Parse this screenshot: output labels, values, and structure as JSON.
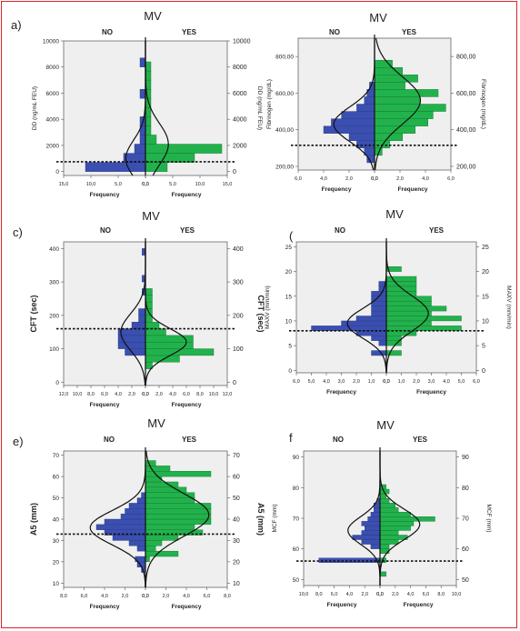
{
  "panels": [
    {
      "letter": "a)",
      "mv": "MV",
      "no": "NO",
      "yes": "YES"
    },
    {
      "letter": "",
      "mv": "MV",
      "no": "NO",
      "yes": "YES"
    },
    {
      "letter": "c)",
      "mv": "MV",
      "no": "NO",
      "yes": "YES"
    },
    {
      "letter": "(",
      "mv": "MV",
      "no": "NO",
      "yes": "YES"
    },
    {
      "letter": "e)",
      "mv": "MV",
      "no": "NO",
      "yes": "YES"
    },
    {
      "letter": "f",
      "mv": "MV",
      "no": "NO",
      "yes": "YES"
    }
  ],
  "colors": {
    "no": "#3a4fb0",
    "yes": "#22b24c",
    "plot_bg": "#efefef",
    "curve": "#111111"
  },
  "chart_data": [
    {
      "type": "bar",
      "orientation": "back-to-back horizontal histogram",
      "ylabel_left": "DD (ng/mL FEU)",
      "ylabel_right": "DD (ng/mL FEU)",
      "xlabel": "Frequency",
      "ylim": [
        -300,
        10000
      ],
      "yticks": [
        "0",
        "2000",
        "4000",
        "6000",
        "8000",
        "10000"
      ],
      "yticks_values": [
        0,
        2000,
        4000,
        6000,
        8000,
        10000
      ],
      "xticks_left": [
        "15,0",
        "10,0",
        "5,0",
        "0,0"
      ],
      "xticks_right": [
        "0,0",
        "5,0",
        "10,0",
        "15,0"
      ],
      "xmax": 15,
      "bin": 700,
      "no_bins": [
        {
          "y": 0,
          "v": 11
        },
        {
          "y": 700,
          "v": 4
        },
        {
          "y": 1400,
          "v": 2
        },
        {
          "y": 2100,
          "v": 1
        },
        {
          "y": 2800,
          "v": 1
        },
        {
          "y": 3500,
          "v": 1
        },
        {
          "y": 5600,
          "v": 1
        },
        {
          "y": 8000,
          "v": 1
        }
      ],
      "yes_bins": [
        {
          "y": 0,
          "v": 4
        },
        {
          "y": 700,
          "v": 9
        },
        {
          "y": 1400,
          "v": 14
        },
        {
          "y": 2100,
          "v": 2
        },
        {
          "y": 2800,
          "v": 1
        },
        {
          "y": 3500,
          "v": 1
        },
        {
          "y": 4200,
          "v": 1
        },
        {
          "y": 4900,
          "v": 1
        },
        {
          "y": 5600,
          "v": 1
        },
        {
          "y": 6300,
          "v": 1
        },
        {
          "y": 7000,
          "v": 1
        },
        {
          "y": 7700,
          "v": 1
        }
      ],
      "no_curve": {
        "mean": 1000,
        "sd": 1400,
        "peak": 3.6
      },
      "yes_curve": {
        "mean": 2100,
        "sd": 1600,
        "peak": 4.2
      },
      "cutoff": 750
    },
    {
      "type": "bar",
      "orientation": "back-to-back horizontal histogram",
      "ylabel_left": "Fibrinogen (mg/dL)",
      "ylabel_right": "Fibrinogen (mg/dL)",
      "xlabel": "Frequency",
      "ylim": [
        180,
        900
      ],
      "yticks_left": [
        "200,00",
        "400,00",
        "600,00",
        "800,00"
      ],
      "yticks_right": [
        "200,00",
        "400,00",
        "600,00",
        "800,00"
      ],
      "yticks_values": [
        200,
        400,
        600,
        800
      ],
      "xticks_left": [
        "6,0",
        "4,0",
        "2,0",
        "0,0"
      ],
      "xticks_right": [
        "0,0",
        "2,0",
        "4,0",
        "6,0"
      ],
      "xmax": 6,
      "bin": 40,
      "no_bins": [
        {
          "y": 220,
          "v": 0.6
        },
        {
          "y": 260,
          "v": 0.8
        },
        {
          "y": 300,
          "v": 1.4
        },
        {
          "y": 340,
          "v": 2.0
        },
        {
          "y": 380,
          "v": 4.0
        },
        {
          "y": 420,
          "v": 3.4
        },
        {
          "y": 460,
          "v": 2.6
        },
        {
          "y": 500,
          "v": 1.4
        },
        {
          "y": 540,
          "v": 0.8
        },
        {
          "y": 580,
          "v": 0.6
        },
        {
          "y": 620,
          "v": 0.4
        }
      ],
      "yes_bins": [
        {
          "y": 260,
          "v": 0.6
        },
        {
          "y": 300,
          "v": 1.2
        },
        {
          "y": 340,
          "v": 2.2
        },
        {
          "y": 380,
          "v": 3.2
        },
        {
          "y": 420,
          "v": 4.2
        },
        {
          "y": 460,
          "v": 4.6
        },
        {
          "y": 500,
          "v": 5.6
        },
        {
          "y": 540,
          "v": 3.6
        },
        {
          "y": 580,
          "v": 5.0
        },
        {
          "y": 620,
          "v": 2.4
        },
        {
          "y": 660,
          "v": 3.4
        },
        {
          "y": 700,
          "v": 2.2
        },
        {
          "y": 740,
          "v": 1.4
        }
      ],
      "no_curve": {
        "mean": 430,
        "sd": 95,
        "peak": 3.2
      },
      "yes_curve": {
        "mean": 560,
        "sd": 130,
        "peak": 3.6
      },
      "cutoff": 315
    },
    {
      "type": "bar",
      "orientation": "back-to-back horizontal histogram",
      "ylabel_left": "CFT (sec)",
      "ylabel_right": "CFT (sec)",
      "xlabel": "Frequency",
      "ylim": [
        -10,
        420
      ],
      "yticks": [
        "0",
        "100",
        "200",
        "300",
        "400"
      ],
      "yticks_values": [
        0,
        100,
        200,
        300,
        400
      ],
      "xticks_left": [
        "12,0",
        "10,0",
        "8,0",
        "6,0",
        "4,0",
        "2,0",
        "0,0"
      ],
      "xticks_right": [
        "0,0",
        "2,0",
        "4,0",
        "6,0",
        "8,0",
        "10,0",
        "12,0"
      ],
      "xmax": 12,
      "bin": 20,
      "no_bins": [
        {
          "y": 80,
          "v": 3
        },
        {
          "y": 100,
          "v": 4
        },
        {
          "y": 120,
          "v": 4
        },
        {
          "y": 140,
          "v": 4
        },
        {
          "y": 160,
          "v": 2
        },
        {
          "y": 180,
          "v": 1
        },
        {
          "y": 200,
          "v": 1
        },
        {
          "y": 260,
          "v": 0.5
        },
        {
          "y": 300,
          "v": 0.5
        },
        {
          "y": 380,
          "v": 0.5
        }
      ],
      "yes_bins": [
        {
          "y": 40,
          "v": 1
        },
        {
          "y": 60,
          "v": 5
        },
        {
          "y": 80,
          "v": 10
        },
        {
          "y": 100,
          "v": 7
        },
        {
          "y": 120,
          "v": 7
        },
        {
          "y": 140,
          "v": 3
        },
        {
          "y": 160,
          "v": 2
        },
        {
          "y": 180,
          "v": 1
        },
        {
          "y": 200,
          "v": 1
        },
        {
          "y": 220,
          "v": 1
        },
        {
          "y": 240,
          "v": 1
        },
        {
          "y": 260,
          "v": 1
        }
      ],
      "no_curve": {
        "mean": 150,
        "sd": 55,
        "peak": 3.6
      },
      "yes_curve": {
        "mean": 120,
        "sd": 40,
        "peak": 6.0
      },
      "cutoff": 160
    },
    {
      "type": "bar",
      "orientation": "back-to-back horizontal histogram",
      "ylabel_left": "MAXV (mm/min)",
      "ylabel_right": "MAXV (mm/min)",
      "xlabel": "Frequency",
      "ylim": [
        -0.5,
        26
      ],
      "yticks": [
        "0",
        "5",
        "10",
        "15",
        "20",
        "25"
      ],
      "yticks_values": [
        0,
        5,
        10,
        15,
        20,
        25
      ],
      "xticks_left": [
        "6,0",
        "5,0",
        "4,0",
        "3,0",
        "2,0",
        "1,0",
        "0,0"
      ],
      "xticks_right": [
        "0,0",
        "1,0",
        "2,0",
        "3,0",
        "4,0",
        "5,0",
        "6,0"
      ],
      "xmax": 6,
      "bin": 1,
      "no_bins": [
        {
          "y": 3,
          "v": 1.0
        },
        {
          "y": 5,
          "v": 0.5
        },
        {
          "y": 6,
          "v": 1.0
        },
        {
          "y": 7,
          "v": 2.0
        },
        {
          "y": 8,
          "v": 5.0
        },
        {
          "y": 9,
          "v": 3.0
        },
        {
          "y": 10,
          "v": 2.0
        },
        {
          "y": 11,
          "v": 1.0
        },
        {
          "y": 12,
          "v": 1.0
        },
        {
          "y": 13,
          "v": 1.0
        },
        {
          "y": 14,
          "v": 1.0
        },
        {
          "y": 15,
          "v": 1.0
        },
        {
          "y": 16,
          "v": 0.5
        },
        {
          "y": 17,
          "v": 0.5
        }
      ],
      "yes_bins": [
        {
          "y": 3,
          "v": 1.0
        },
        {
          "y": 5,
          "v": 1.0
        },
        {
          "y": 6,
          "v": 1.0
        },
        {
          "y": 7,
          "v": 2.0
        },
        {
          "y": 8,
          "v": 5.0
        },
        {
          "y": 9,
          "v": 3.0
        },
        {
          "y": 10,
          "v": 5.0
        },
        {
          "y": 11,
          "v": 3.0
        },
        {
          "y": 12,
          "v": 4.0
        },
        {
          "y": 13,
          "v": 3.0
        },
        {
          "y": 14,
          "v": 3.0
        },
        {
          "y": 15,
          "v": 2.0
        },
        {
          "y": 16,
          "v": 2.0
        },
        {
          "y": 17,
          "v": 2.0
        },
        {
          "y": 18,
          "v": 2.0
        },
        {
          "y": 20,
          "v": 1.0
        }
      ],
      "no_curve": {
        "mean": 9.5,
        "sd": 3.0,
        "peak": 2.6
      },
      "yes_curve": {
        "mean": 11.5,
        "sd": 3.6,
        "peak": 2.8
      },
      "cutoff": 8
    },
    {
      "type": "bar",
      "orientation": "back-to-back horizontal histogram",
      "ylabel_left": "A5 (mm)",
      "ylabel_right": "A5 (mm)",
      "xlabel": "Frequency",
      "ylim": [
        8,
        72
      ],
      "yticks": [
        "10",
        "20",
        "30",
        "40",
        "50",
        "60",
        "70"
      ],
      "yticks_values": [
        10,
        20,
        30,
        40,
        50,
        60,
        70
      ],
      "xticks_left": [
        "8,0",
        "6,0",
        "4,0",
        "2,0",
        "0,0"
      ],
      "xticks_right": [
        "0,0",
        "2,0",
        "4,0",
        "6,0",
        "8,0"
      ],
      "xmax": 8,
      "bin": 2.5,
      "no_bins": [
        {
          "y": 15,
          "v": 0.4
        },
        {
          "y": 17.5,
          "v": 0.8
        },
        {
          "y": 20,
          "v": 1.0
        },
        {
          "y": 25,
          "v": 0.8
        },
        {
          "y": 27.5,
          "v": 1.6
        },
        {
          "y": 30,
          "v": 3.2
        },
        {
          "y": 32.5,
          "v": 4.0
        },
        {
          "y": 35,
          "v": 4.8
        },
        {
          "y": 37.5,
          "v": 4.0
        },
        {
          "y": 40,
          "v": 2.4
        },
        {
          "y": 42.5,
          "v": 2.0
        },
        {
          "y": 45,
          "v": 1.6
        },
        {
          "y": 47.5,
          "v": 0.8
        },
        {
          "y": 50,
          "v": 0.4
        }
      ],
      "yes_bins": [
        {
          "y": 20,
          "v": 0.4
        },
        {
          "y": 22.5,
          "v": 3.2
        },
        {
          "y": 25,
          "v": 1.0
        },
        {
          "y": 27.5,
          "v": 1.6
        },
        {
          "y": 30,
          "v": 3.2
        },
        {
          "y": 32.5,
          "v": 5.6
        },
        {
          "y": 35,
          "v": 4.8
        },
        {
          "y": 37.5,
          "v": 6.4
        },
        {
          "y": 40,
          "v": 6.4
        },
        {
          "y": 42.5,
          "v": 6.4
        },
        {
          "y": 45,
          "v": 6.4
        },
        {
          "y": 47.5,
          "v": 4.8
        },
        {
          "y": 50,
          "v": 4.8
        },
        {
          "y": 52.5,
          "v": 4.0
        },
        {
          "y": 55,
          "v": 3.2
        },
        {
          "y": 57.5,
          "v": 1.6
        },
        {
          "y": 60,
          "v": 6.4
        },
        {
          "y": 62.5,
          "v": 2.4
        },
        {
          "y": 65,
          "v": 1.0
        }
      ],
      "no_curve": {
        "mean": 36,
        "sd": 8,
        "peak": 5.4
      },
      "yes_curve": {
        "mean": 42,
        "sd": 10,
        "peak": 6.2
      },
      "cutoff": 33
    },
    {
      "type": "bar",
      "orientation": "back-to-back horizontal histogram",
      "ylabel_left": "MCF (mm)",
      "ylabel_right": "MCF (mm)",
      "xlabel": "Frequency",
      "ylim": [
        48,
        92
      ],
      "yticks": [
        "50",
        "60",
        "70",
        "80",
        "90"
      ],
      "yticks_values": [
        50,
        60,
        70,
        80,
        90
      ],
      "xticks_left": [
        "10,0",
        "8,0",
        "6,0",
        "4,0",
        "2,0",
        "0,0"
      ],
      "xticks_right": [
        "0,0",
        "2,0",
        "4,0",
        "6,0",
        "8,0",
        "10,0"
      ],
      "xmax": 10,
      "bin": 1.5,
      "no_bins": [
        {
          "y": 55.5,
          "v": 8.0
        },
        {
          "y": 60,
          "v": 1.2
        },
        {
          "y": 61.5,
          "v": 2.4
        },
        {
          "y": 63,
          "v": 3.6
        },
        {
          "y": 64.5,
          "v": 2.4
        },
        {
          "y": 66,
          "v": 2.0
        },
        {
          "y": 67.5,
          "v": 2.4
        },
        {
          "y": 69,
          "v": 1.6
        },
        {
          "y": 70.5,
          "v": 1.2
        },
        {
          "y": 72,
          "v": 0.8
        },
        {
          "y": 73.5,
          "v": 0.8
        },
        {
          "y": 75,
          "v": 0.4
        }
      ],
      "yes_bins": [
        {
          "y": 51,
          "v": 0.8
        },
        {
          "y": 55.5,
          "v": 0.8
        },
        {
          "y": 58.5,
          "v": 1.2
        },
        {
          "y": 60,
          "v": 1.2
        },
        {
          "y": 61.5,
          "v": 2.4
        },
        {
          "y": 63,
          "v": 3.6
        },
        {
          "y": 64.5,
          "v": 2.4
        },
        {
          "y": 66,
          "v": 4.0
        },
        {
          "y": 67.5,
          "v": 4.4
        },
        {
          "y": 69,
          "v": 7.2
        },
        {
          "y": 70.5,
          "v": 4.0
        },
        {
          "y": 72,
          "v": 2.4
        },
        {
          "y": 73.5,
          "v": 2.0
        },
        {
          "y": 75,
          "v": 1.2
        },
        {
          "y": 76.5,
          "v": 0.8
        },
        {
          "y": 78,
          "v": 1.2
        },
        {
          "y": 79.5,
          "v": 0.8
        }
      ],
      "no_curve": {
        "mean": 66,
        "sd": 4.5,
        "peak": 4.2
      },
      "yes_curve": {
        "mean": 68,
        "sd": 5,
        "peak": 5.2
      },
      "cutoff": 56
    }
  ]
}
